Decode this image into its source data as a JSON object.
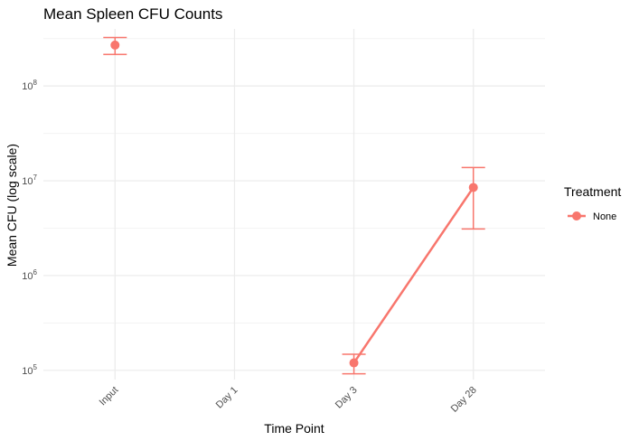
{
  "chart_data": {
    "type": "line",
    "title": "Mean Spleen CFU Counts",
    "xlabel": "Time Point",
    "ylabel": "Mean CFU (log scale)",
    "y_scale": "log10",
    "ylim": [
      80000,
      400000000
    ],
    "categories": [
      "Input",
      "Day 1",
      "Day 3",
      "Day 28"
    ],
    "y_ticks": [
      {
        "value": 100000,
        "base": "10",
        "exp": "5"
      },
      {
        "value": 1000000,
        "base": "10",
        "exp": "6"
      },
      {
        "value": 10000000,
        "base": "10",
        "exp": "7"
      },
      {
        "value": 100000000,
        "base": "10",
        "exp": "8"
      }
    ],
    "grid": true,
    "legend_position": "right",
    "legend_title": "Treatment",
    "series": [
      {
        "name": "None",
        "color": "#F8766D",
        "points": [
          {
            "x": "Input",
            "y": 270000000,
            "ymin": 215000000,
            "ymax": 325000000
          },
          {
            "x": "Day 3",
            "y": 120000,
            "ymin": 92000,
            "ymax": 148000
          },
          {
            "x": "Day 28",
            "y": 8500000,
            "ymin": 3100000,
            "ymax": 13800000
          }
        ],
        "line_connects": [
          "Day 3",
          "Day 28"
        ]
      }
    ]
  }
}
